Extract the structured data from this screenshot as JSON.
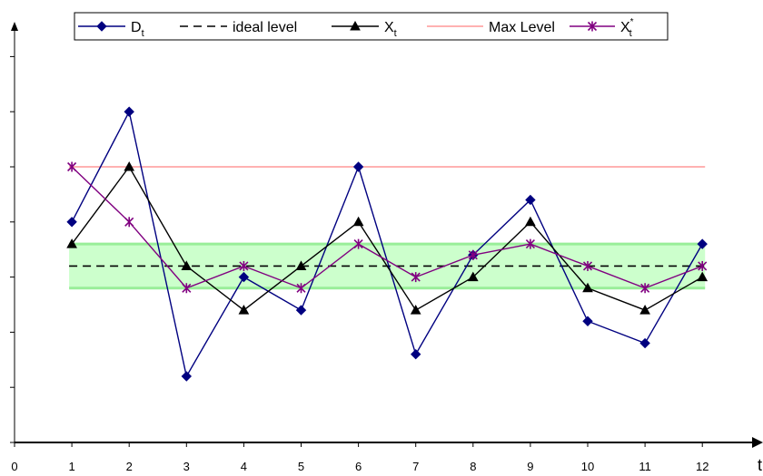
{
  "chart_data": {
    "type": "line",
    "title": "",
    "xlabel": "t",
    "ylabel": "",
    "x": [
      1,
      2,
      3,
      4,
      5,
      6,
      7,
      8,
      9,
      10,
      11,
      12
    ],
    "x_ticks": [
      0,
      1,
      2,
      3,
      4,
      5,
      6,
      7,
      8,
      9,
      10,
      11,
      12
    ],
    "xlim": [
      0,
      12.9
    ],
    "ylim": [
      0,
      7.5
    ],
    "y_tick_marks": [
      0,
      1,
      2,
      3,
      4,
      5,
      6,
      7
    ],
    "grid": false,
    "legend_position": "top-center",
    "band": {
      "lower": 2.8,
      "upper": 3.6,
      "color": "#ccffcc",
      "edge_color": "#99ee99"
    },
    "series": [
      {
        "name": "D",
        "name_subscript": "t",
        "style": "solid",
        "marker": "diamond",
        "color": "#000080",
        "values": [
          4,
          6,
          1.2,
          3,
          2.4,
          5,
          1.6,
          3.4,
          4.4,
          2.2,
          1.8,
          3.6
        ]
      },
      {
        "name": "ideal level",
        "style": "dashed",
        "marker": "none",
        "color": "#000000",
        "values": [
          3.2,
          3.2,
          3.2,
          3.2,
          3.2,
          3.2,
          3.2,
          3.2,
          3.2,
          3.2,
          3.2,
          3.2
        ]
      },
      {
        "name": "X",
        "name_subscript": "t",
        "style": "solid",
        "marker": "triangle",
        "color": "#000000",
        "values": [
          3.6,
          5,
          3.2,
          2.4,
          3.2,
          4,
          2.4,
          3,
          4,
          2.8,
          2.4,
          3
        ]
      },
      {
        "name": "Max Level",
        "style": "solid",
        "marker": "none",
        "color": "#ff6666",
        "values": [
          5,
          5,
          5,
          5,
          5,
          5,
          5,
          5,
          5,
          5,
          5,
          5
        ]
      },
      {
        "name": "X",
        "name_subscript": "t",
        "name_superscript": "*",
        "style": "solid",
        "marker": "asterisk",
        "color": "#800080",
        "values": [
          5,
          4,
          2.8,
          3.2,
          2.8,
          3.6,
          3,
          3.4,
          3.6,
          3.2,
          2.8,
          3.2
        ]
      }
    ]
  }
}
